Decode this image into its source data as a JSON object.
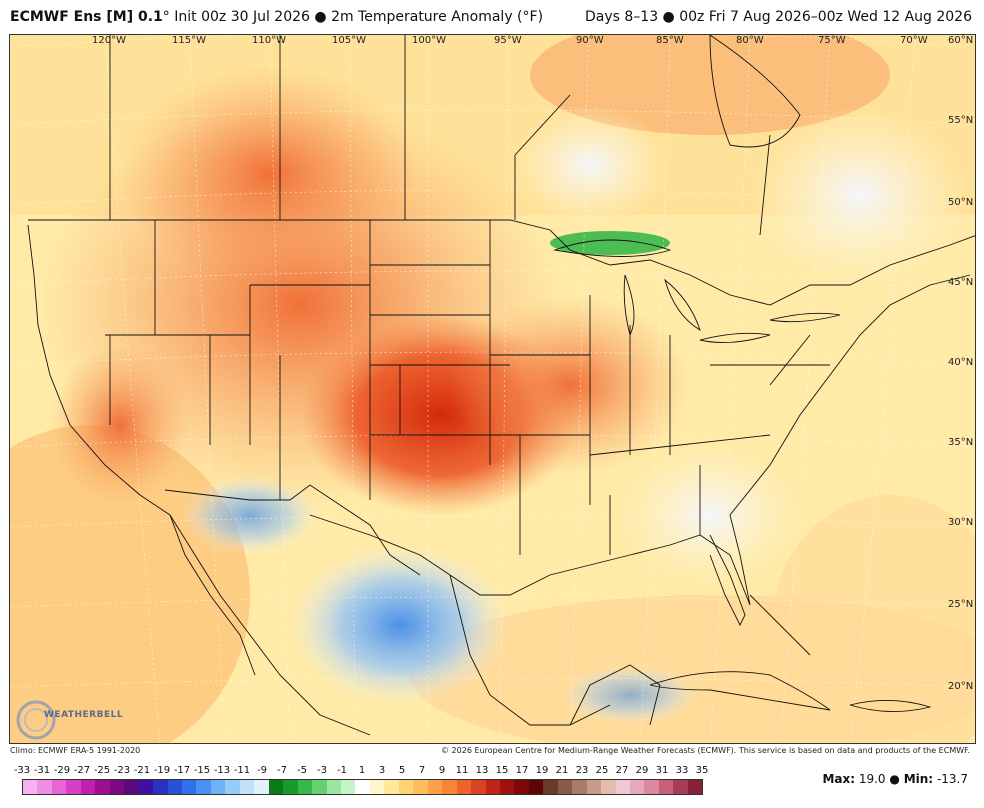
{
  "header": {
    "model": "ECMWF Ens [M] 0.1",
    "degree": "°",
    "init": "Init 00z 30 Jul 2026",
    "bullet": "●",
    "field": "2m Temperature Anomaly (°F)",
    "valid": "Days 8–13 ● 00z Fri 7 Aug 2026–00z Wed 12 Aug 2026"
  },
  "map": {
    "lon_labels": [
      "120°W",
      "115°W",
      "110°W",
      "105°W",
      "100°W",
      "95°W",
      "90°W",
      "85°W",
      "80°W",
      "75°W",
      "70°W"
    ],
    "lat_labels": [
      "60°N",
      "55°N",
      "50°N",
      "45°N",
      "40°N",
      "35°N",
      "30°N",
      "25°N",
      "20°N"
    ]
  },
  "logo": {
    "text": "WEATHERBELL"
  },
  "footer": {
    "climo": "Climo: ECMWF ERA-5 1991-2020",
    "copyright": "© 2026 European Centre for Medium-Range Weather Forecasts (ECMWF). This service is based on data and products of the ECMWF."
  },
  "scale": {
    "labels": [
      "-33",
      "-31",
      "-29",
      "-27",
      "-25",
      "-23",
      "-21",
      "-19",
      "-17",
      "-15",
      "-13",
      "-11",
      "-9",
      "-7",
      "-5",
      "-3",
      "-1",
      "1",
      "3",
      "5",
      "7",
      "9",
      "11",
      "13",
      "15",
      "17",
      "19",
      "21",
      "23",
      "25",
      "27",
      "29",
      "31",
      "33",
      "35"
    ],
    "colors": [
      "#f7b3f0",
      "#f08ee6",
      "#e864d8",
      "#d83ec6",
      "#c020ae",
      "#9c1090",
      "#7a0a80",
      "#5a0a80",
      "#3c10a0",
      "#2a30c0",
      "#2a50d8",
      "#3070e8",
      "#4a90f0",
      "#70b0f4",
      "#98ccf8",
      "#c0e0fa",
      "#e4f0fc",
      "#0a7a1a",
      "#1a9a2a",
      "#38b848",
      "#66d070",
      "#9ae6a0",
      "#c6f4c8",
      "#ffffff",
      "#fff6c8",
      "#ffe89c",
      "#ffd478",
      "#ffbc5c",
      "#ffa048",
      "#f8843a",
      "#ec642c",
      "#d84422",
      "#c02418",
      "#a0100e",
      "#7c0808",
      "#5a0606",
      "#6a3a2a",
      "#8a5a48",
      "#aa7a68",
      "#c89a8a",
      "#e4bcae",
      "#f0c8d4",
      "#e8a8bc",
      "#dc889e",
      "#c8607a",
      "#a83c58",
      "#8a2038"
    ]
  },
  "maxmin": {
    "max_label": "Max:",
    "max_value": "19.0",
    "sep": "●",
    "min_label": "Min:",
    "min_value": "-13.7"
  }
}
